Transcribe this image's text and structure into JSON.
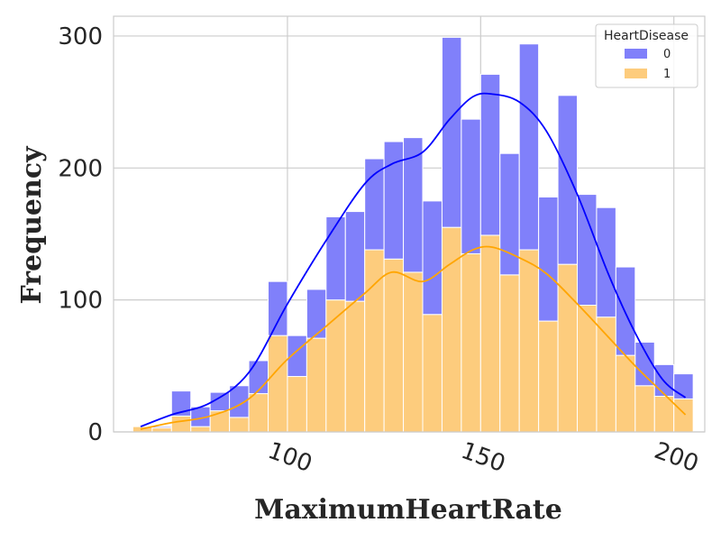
{
  "chart_data": {
    "type": "bar",
    "subtype": "stacked-histogram-with-kde",
    "xlabel": "MaximumHeartRate",
    "ylabel": "Frequency",
    "xlim": [
      55,
      208
    ],
    "ylim": [
      0,
      315
    ],
    "x_ticks": [
      100,
      150,
      200
    ],
    "y_ticks": [
      0,
      100,
      200,
      300
    ],
    "grid": true,
    "legend": {
      "title": "HeartDisease",
      "placement": "top-right"
    },
    "bin_edges": [
      60,
      65,
      70,
      75,
      80,
      85,
      90,
      95,
      100,
      105,
      110,
      115,
      120,
      125,
      130,
      135,
      140,
      145,
      150,
      155,
      160,
      165,
      170,
      175,
      180,
      185,
      190,
      195,
      200,
      205
    ],
    "series": [
      {
        "name": "0",
        "color": "#0000ff",
        "bar_color": "#8080fa",
        "values": [
          0,
          1,
          19,
          15,
          14,
          24,
          25,
          41,
          31,
          37,
          63,
          68,
          69,
          89,
          102,
          86,
          144,
          102,
          122,
          92,
          156,
          94,
          128,
          84,
          83,
          67,
          33,
          24,
          19
        ]
      },
      {
        "name": "1",
        "color": "#ffa500",
        "bar_color": "#fdcc7d",
        "values": [
          4,
          3,
          12,
          4,
          16,
          11,
          29,
          73,
          42,
          71,
          100,
          99,
          138,
          131,
          121,
          89,
          155,
          135,
          149,
          119,
          138,
          84,
          127,
          96,
          87,
          58,
          35,
          27,
          25
        ]
      }
    ],
    "kde": [
      {
        "name": "0",
        "color": "#0000ff",
        "x": [
          62,
          70,
          80,
          90,
          100,
          110,
          120,
          127,
          135,
          142,
          148,
          153,
          160,
          167,
          175,
          183,
          190,
          197,
          203
        ],
        "y": [
          4,
          13,
          22,
          45,
          97,
          145,
          188,
          203,
          212,
          237,
          254,
          256,
          250,
          228,
          180,
          120,
          75,
          40,
          26
        ]
      },
      {
        "name": "1",
        "color": "#ffa500",
        "x": [
          62,
          70,
          80,
          90,
          100,
          110,
          120,
          127,
          135,
          142,
          148,
          153,
          160,
          167,
          175,
          183,
          190,
          197,
          203
        ],
        "y": [
          2,
          7,
          12,
          25,
          55,
          80,
          105,
          121,
          114,
          127,
          138,
          140,
          132,
          120,
          97,
          72,
          50,
          30,
          13
        ]
      }
    ]
  }
}
